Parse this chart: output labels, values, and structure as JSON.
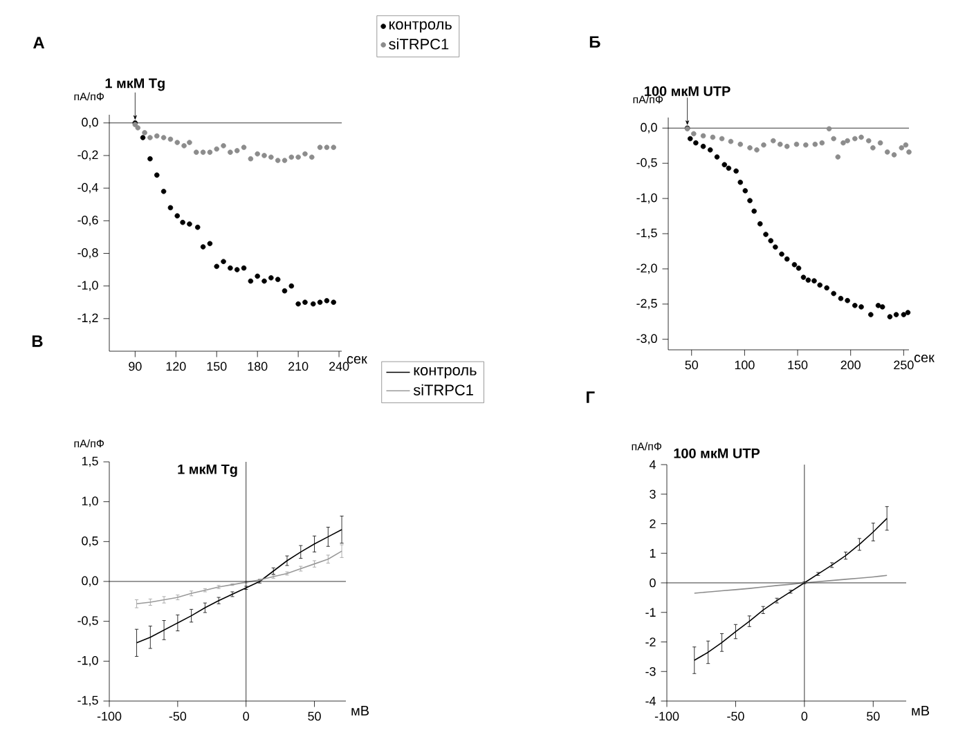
{
  "chart_data": [
    {
      "type": "scatter",
      "title": "А",
      "xlabel": "сек",
      "ylabel": "пА/пФ",
      "marker": "circle",
      "legend": "top right",
      "xlim": [
        71,
        242
      ],
      "ylim": [
        -1.4,
        0.05
      ],
      "xticks": [
        90,
        120,
        150,
        180,
        210,
        240
      ],
      "yticks": [
        {
          "value": 0,
          "label": "0,0"
        },
        {
          "value": -0.2,
          "label": "-0,2"
        },
        {
          "value": -0.4,
          "label": "-0,4"
        },
        {
          "value": -0.6,
          "label": "-0,6"
        },
        {
          "value": -0.8,
          "label": "-0,8"
        },
        {
          "value": -1.0,
          "label": "-1,0"
        },
        {
          "value": -1.2,
          "label": "-1,2"
        }
      ],
      "ref_lines": [
        {
          "axis": "y",
          "value": 0
        }
      ],
      "annotations": [
        {
          "text": "1 мкМ Tg",
          "x": 90,
          "y": 0
        }
      ],
      "series": [
        {
          "name": "контроль",
          "color": "#000000",
          "x": [
            90,
            95.7,
            101,
            106,
            111,
            116,
            121,
            125,
            130,
            136,
            140,
            145,
            150,
            155,
            160,
            165,
            170,
            175,
            180,
            185,
            190,
            195,
            200,
            205,
            210,
            215,
            221,
            226,
            231,
            236
          ],
          "values": [
            0,
            -0.09,
            -0.22,
            -0.32,
            -0.42,
            -0.52,
            -0.57,
            -0.61,
            -0.62,
            -0.64,
            -0.76,
            -0.74,
            -0.88,
            -0.85,
            -0.89,
            -0.9,
            -0.89,
            -0.97,
            -0.94,
            -0.97,
            -0.95,
            -0.96,
            -1.03,
            -1.0,
            -1.11,
            -1.1,
            -1.11,
            -1.1,
            -1.09,
            -1.1
          ]
        },
        {
          "name": "siTRPC1",
          "color": "#8c8c8c",
          "x": [
            90,
            92,
            97,
            101,
            106,
            111,
            116,
            121,
            126,
            130,
            135,
            140,
            145,
            150,
            155,
            160,
            165,
            170,
            175,
            180,
            185,
            190,
            195,
            200,
            205,
            210,
            215,
            220,
            226,
            231,
            236
          ],
          "values": [
            -0.01,
            -0.03,
            -0.06,
            -0.09,
            -0.08,
            -0.09,
            -0.1,
            -0.12,
            -0.14,
            -0.12,
            -0.18,
            -0.18,
            -0.18,
            -0.16,
            -0.14,
            -0.18,
            -0.17,
            -0.15,
            -0.22,
            -0.19,
            -0.2,
            -0.21,
            -0.23,
            -0.23,
            -0.21,
            -0.21,
            -0.19,
            -0.21,
            -0.15,
            -0.15,
            -0.15
          ]
        }
      ]
    },
    {
      "type": "scatter",
      "title": "Б",
      "xlabel": "сек",
      "ylabel": "пА/пФ",
      "marker": "circle",
      "xlim": [
        28,
        255
      ],
      "ylim": [
        -3.15,
        0.15
      ],
      "xticks": [
        50,
        100,
        150,
        200,
        250
      ],
      "yticks": [
        {
          "value": 0,
          "label": "0,0"
        },
        {
          "value": -0.5,
          "label": "-0,5"
        },
        {
          "value": -1.0,
          "label": "-1,0"
        },
        {
          "value": -1.5,
          "label": "-1,5"
        },
        {
          "value": -2.0,
          "label": "-2,0"
        },
        {
          "value": -2.5,
          "label": "-2,5"
        },
        {
          "value": -3.0,
          "label": "-3,0"
        }
      ],
      "ref_lines": [
        {
          "axis": "y",
          "value": 0
        }
      ],
      "annotations": [
        {
          "text": "100 мкМ UTP",
          "x": 46,
          "y": 0
        }
      ],
      "series": [
        {
          "color": "#000000",
          "x": [
            46,
            48.7,
            54,
            61,
            67.6,
            74,
            81,
            85,
            92,
            96,
            100.6,
            105,
            109,
            114.6,
            120,
            124.7,
            129,
            135,
            140,
            147,
            151,
            155.5,
            160,
            165.6,
            171,
            177.5,
            184,
            190.7,
            197,
            204,
            210,
            219,
            226,
            230,
            237,
            243,
            250,
            254
          ],
          "values": [
            0.0,
            -0.15,
            -0.21,
            -0.26,
            -0.31,
            -0.41,
            -0.52,
            -0.57,
            -0.61,
            -0.77,
            -0.89,
            -1.03,
            -1.18,
            -1.36,
            -1.51,
            -1.6,
            -1.69,
            -1.79,
            -1.86,
            -1.94,
            -1.99,
            -2.12,
            -2.16,
            -2.17,
            -2.23,
            -2.27,
            -2.35,
            -2.42,
            -2.45,
            -2.52,
            -2.54,
            -2.65,
            -2.52,
            -2.54,
            -2.68,
            -2.65,
            -2.65,
            -2.62
          ]
        },
        {
          "color": "#8c8c8c",
          "x": [
            46,
            52,
            61,
            70,
            78.6,
            87,
            96,
            105,
            111.5,
            118,
            127,
            133.5,
            140,
            149,
            157.7,
            166.5,
            173,
            179.7,
            184,
            188,
            193,
            197,
            204,
            210,
            217,
            221,
            228,
            234.6,
            241,
            248,
            252,
            255
          ],
          "values": [
            -0.01,
            -0.08,
            -0.11,
            -0.13,
            -0.15,
            -0.19,
            -0.23,
            -0.28,
            -0.31,
            -0.24,
            -0.18,
            -0.23,
            -0.26,
            -0.23,
            -0.24,
            -0.23,
            -0.21,
            -0.01,
            -0.15,
            -0.41,
            -0.21,
            -0.18,
            -0.15,
            -0.13,
            -0.18,
            -0.28,
            -0.21,
            -0.34,
            -0.38,
            -0.28,
            -0.24,
            -0.34
          ]
        }
      ]
    },
    {
      "type": "line",
      "title": "В",
      "xlabel": "мВ",
      "ylabel": "пА/пФ",
      "legend": "top right",
      "xlim": [
        -100,
        73
      ],
      "ylim": [
        -1.5,
        1.5
      ],
      "xticks": [
        -100,
        -50,
        0,
        50
      ],
      "yticks": [
        {
          "value": 1.5,
          "label": "1,5"
        },
        {
          "value": 1.0,
          "label": "1,0"
        },
        {
          "value": 0.5,
          "label": "0,5"
        },
        {
          "value": 0,
          "label": "0,0"
        },
        {
          "value": -0.5,
          "label": "-0,5"
        },
        {
          "value": -1.0,
          "label": "-1,0"
        },
        {
          "value": -1.5,
          "label": "-1,5"
        }
      ],
      "ref_lines": [
        {
          "axis": "y",
          "value": 0
        },
        {
          "axis": "x",
          "value": 0
        }
      ],
      "annotations": [
        "1 мкМ Tg"
      ],
      "x": [
        -80,
        -70,
        -60,
        -50,
        -40,
        -30,
        -20,
        -10,
        0,
        10,
        20,
        30,
        40,
        50,
        60,
        70
      ],
      "series": [
        {
          "name": "контроль",
          "color": "#000000",
          "values": [
            -0.77,
            -0.7,
            -0.61,
            -0.52,
            -0.43,
            -0.33,
            -0.24,
            -0.16,
            -0.08,
            0.0,
            0.13,
            0.26,
            0.37,
            0.47,
            0.56,
            0.65
          ],
          "errors": [
            0.17,
            0.14,
            0.12,
            0.1,
            0.08,
            0.06,
            0.04,
            0.03,
            0.02,
            0.02,
            0.04,
            0.06,
            0.08,
            0.1,
            0.12,
            0.17
          ]
        },
        {
          "name": "siTRPC1",
          "color": "#999999",
          "values": [
            -0.28,
            -0.26,
            -0.23,
            -0.2,
            -0.15,
            -0.11,
            -0.07,
            -0.04,
            -0.01,
            0.02,
            0.06,
            0.1,
            0.16,
            0.22,
            0.28,
            0.38
          ],
          "errors": [
            0.05,
            0.04,
            0.04,
            0.03,
            0.03,
            0.02,
            0.02,
            0.01,
            0.01,
            0.01,
            0.02,
            0.02,
            0.03,
            0.04,
            0.05,
            0.08
          ]
        }
      ]
    },
    {
      "type": "line",
      "title": "Г",
      "xlabel": "мВ",
      "ylabel": "пА/пФ",
      "xlim": [
        -100,
        74
      ],
      "ylim": [
        -4,
        4
      ],
      "xticks": [
        -100,
        -50,
        0,
        50
      ],
      "yticks": [
        4,
        3,
        2,
        1,
        0,
        -1,
        -2,
        -3,
        -4
      ],
      "ref_lines": [
        {
          "axis": "y",
          "value": 0
        },
        {
          "axis": "x",
          "value": 0
        }
      ],
      "annotations": [
        "100 мкМ UTP"
      ],
      "x": [
        -80,
        -70,
        -60,
        -50,
        -40,
        -30,
        -20,
        -10,
        0,
        10,
        20,
        30,
        40,
        50,
        60
      ],
      "series": [
        {
          "color": "#000000",
          "values": [
            -2.62,
            -2.35,
            -2.02,
            -1.65,
            -1.3,
            -0.92,
            -0.6,
            -0.3,
            0,
            0.3,
            0.6,
            0.92,
            1.3,
            1.72,
            2.18
          ],
          "errors": [
            0.45,
            0.38,
            0.3,
            0.24,
            0.18,
            0.12,
            0.08,
            0.05,
            0.03,
            0.05,
            0.08,
            0.12,
            0.2,
            0.3,
            0.4
          ]
        },
        {
          "color": "#8c8c8c",
          "values": [
            -0.35,
            -0.31,
            -0.27,
            -0.23,
            -0.19,
            -0.14,
            -0.09,
            -0.05,
            0,
            0.04,
            0.08,
            0.12,
            0.16,
            0.2,
            0.25
          ]
        }
      ]
    }
  ]
}
